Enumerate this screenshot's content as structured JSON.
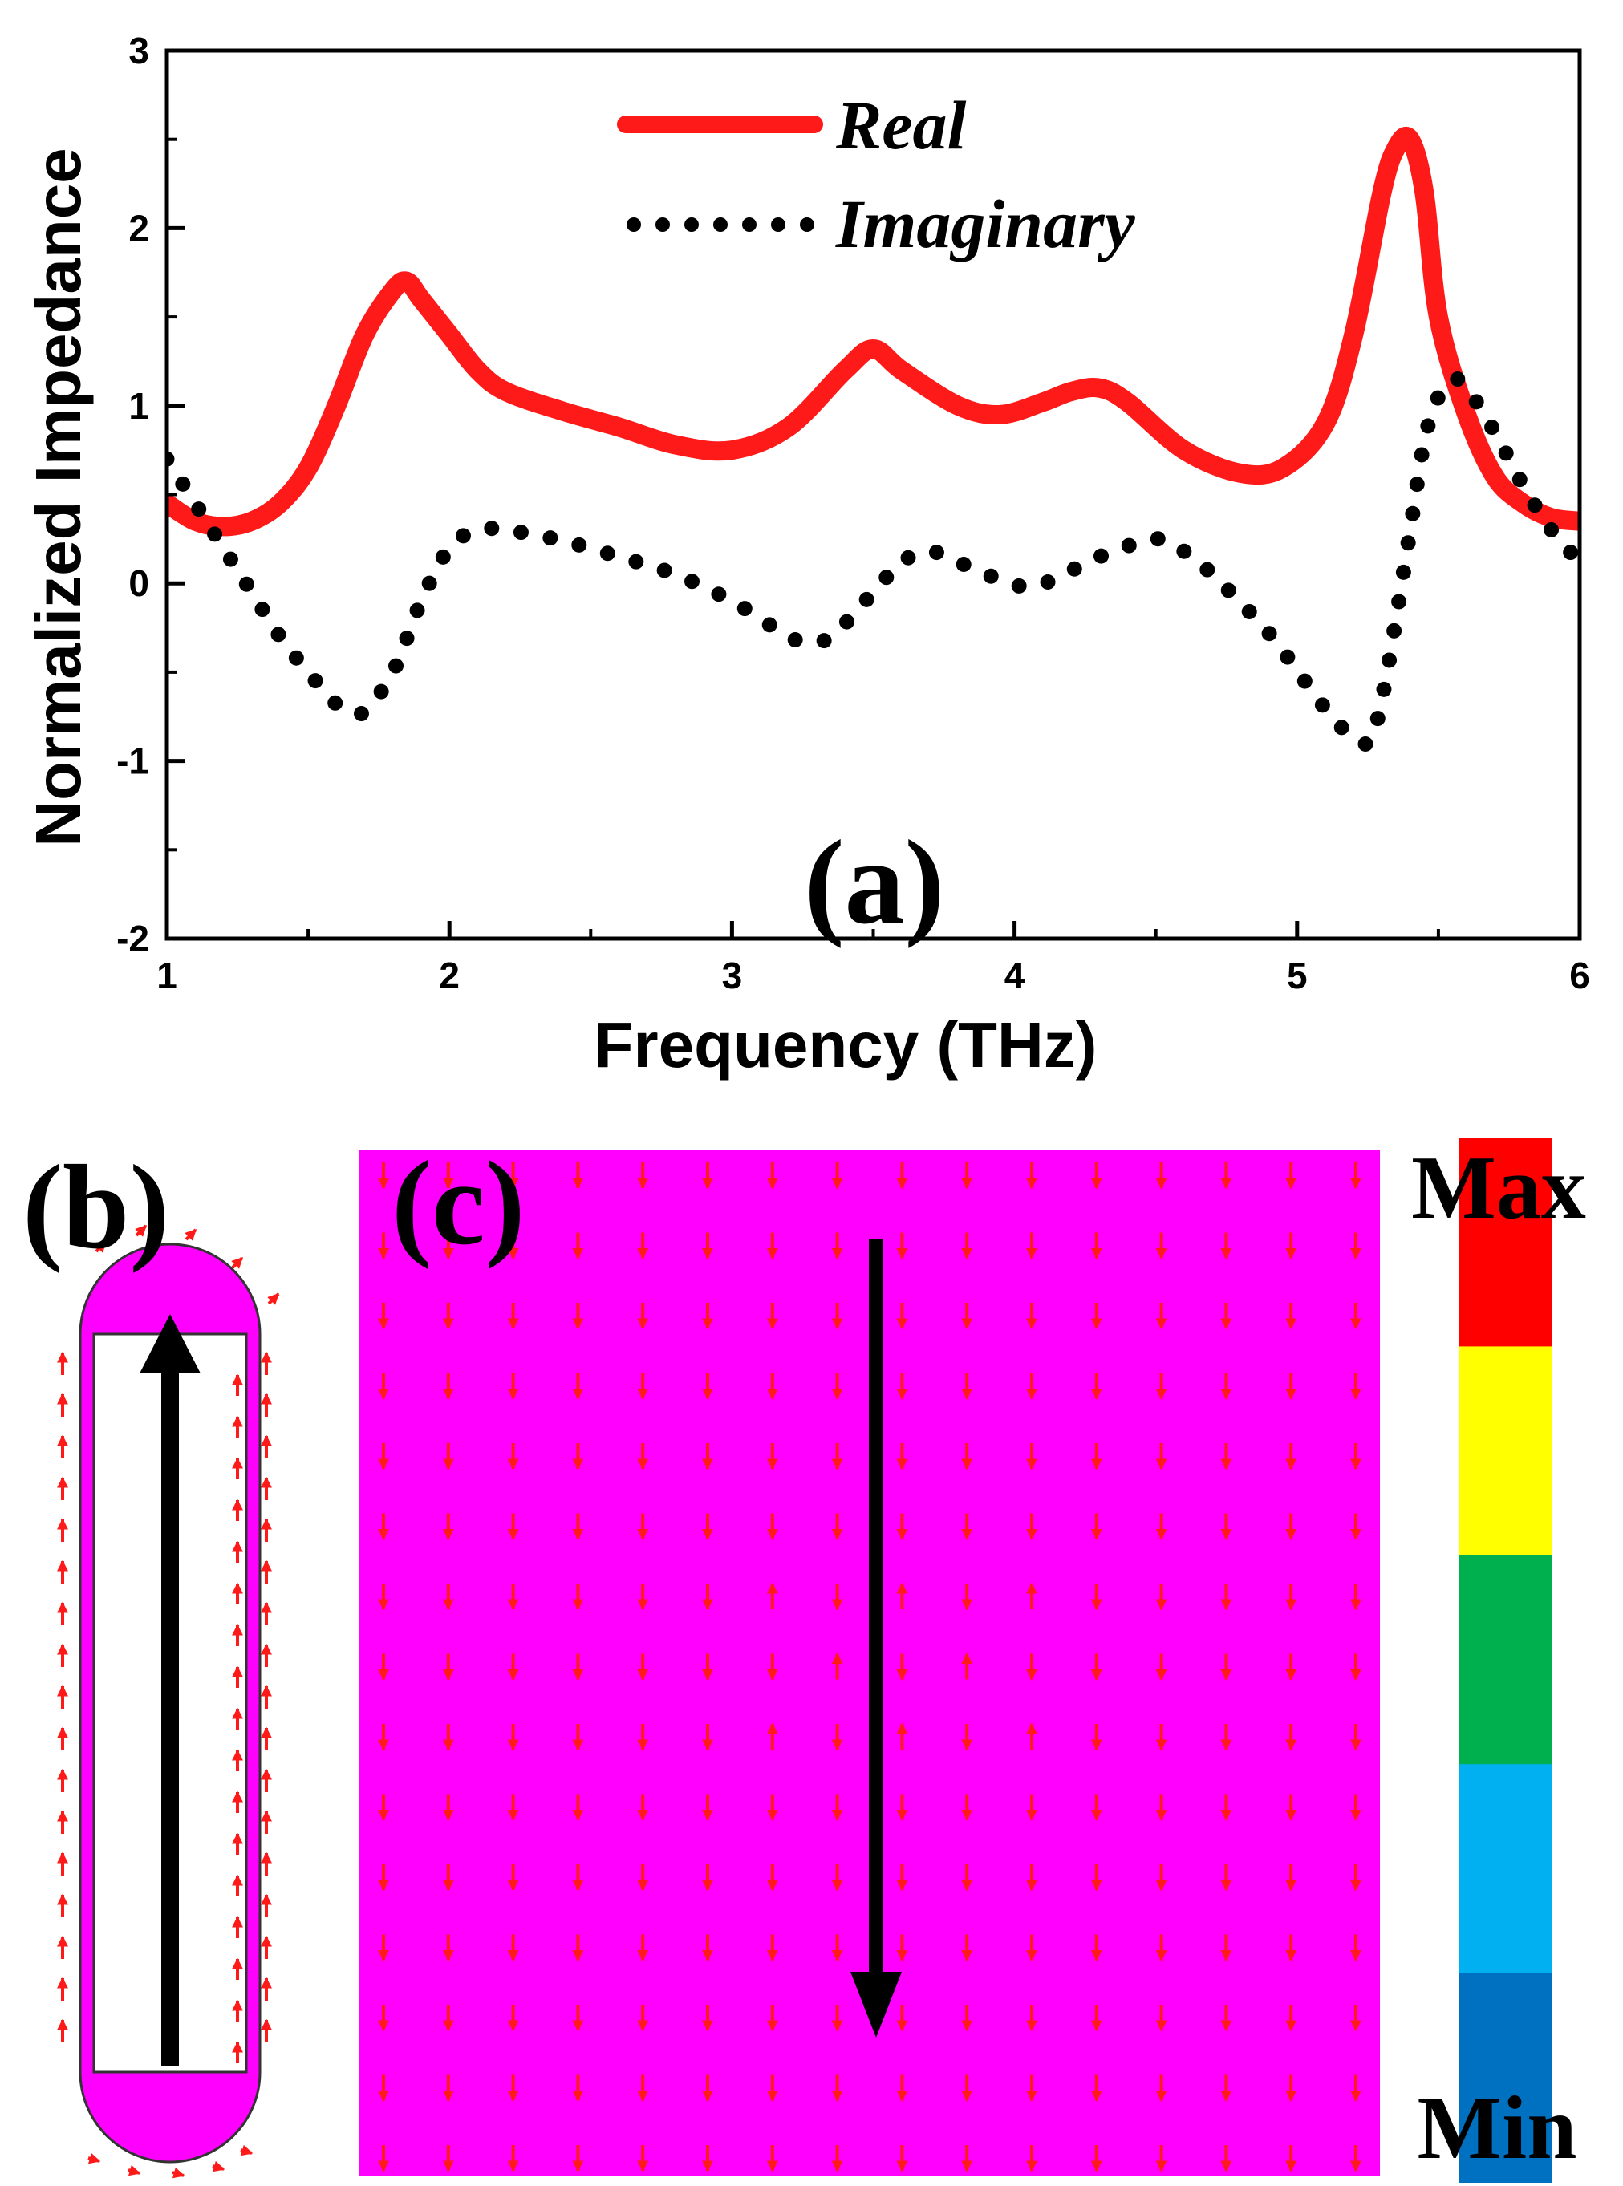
{
  "chart_data": {
    "type": "line",
    "xlabel": "Frequency (THz)",
    "ylabel": "Normalized Impedance",
    "xlim": [
      1,
      6
    ],
    "ylim": [
      -2,
      3
    ],
    "xticks": [
      "1",
      "2",
      "3",
      "4",
      "5",
      "6"
    ],
    "yticks": [
      "-2",
      "-1",
      "0",
      "1",
      "2",
      "3"
    ],
    "legend_position": "top-center",
    "panel_label": "(a)",
    "series": [
      {
        "name": "Real",
        "style": "solid",
        "color": "#ff1a1a",
        "x": [
          1.0,
          1.1,
          1.2,
          1.3,
          1.4,
          1.5,
          1.6,
          1.7,
          1.8,
          1.85,
          1.9,
          2.0,
          2.1,
          2.2,
          2.4,
          2.6,
          2.8,
          3.0,
          3.2,
          3.4,
          3.5,
          3.6,
          3.8,
          3.95,
          4.1,
          4.2,
          4.3,
          4.4,
          4.6,
          4.8,
          4.95,
          5.1,
          5.2,
          5.3,
          5.35,
          5.4,
          5.45,
          5.5,
          5.6,
          5.7,
          5.8,
          5.9,
          6.0
        ],
        "y": [
          0.45,
          0.35,
          0.32,
          0.35,
          0.45,
          0.65,
          1.0,
          1.4,
          1.65,
          1.7,
          1.6,
          1.4,
          1.2,
          1.08,
          0.97,
          0.88,
          0.78,
          0.75,
          0.88,
          1.2,
          1.32,
          1.2,
          1.0,
          0.95,
          1.02,
          1.08,
          1.1,
          1.02,
          0.75,
          0.62,
          0.65,
          0.9,
          1.4,
          2.2,
          2.45,
          2.5,
          2.2,
          1.5,
          0.95,
          0.6,
          0.45,
          0.37,
          0.35
        ]
      },
      {
        "name": "Imaginary",
        "style": "dotted",
        "color": "#000000",
        "x": [
          1.0,
          1.1,
          1.2,
          1.3,
          1.4,
          1.5,
          1.6,
          1.65,
          1.7,
          1.8,
          1.9,
          2.0,
          2.1,
          2.2,
          2.4,
          2.6,
          2.8,
          3.0,
          3.15,
          3.25,
          3.35,
          3.5,
          3.6,
          3.7,
          3.8,
          3.95,
          4.05,
          4.15,
          4.3,
          4.5,
          4.6,
          4.7,
          4.9,
          5.05,
          5.15,
          5.25,
          5.3,
          5.35,
          5.4,
          5.45,
          5.5,
          5.55,
          5.6,
          5.7,
          5.8,
          5.9,
          6.0
        ],
        "y": [
          0.7,
          0.45,
          0.2,
          -0.05,
          -0.3,
          -0.5,
          -0.68,
          -0.72,
          -0.72,
          -0.5,
          -0.1,
          0.2,
          0.3,
          0.3,
          0.24,
          0.15,
          0.05,
          -0.1,
          -0.25,
          -0.33,
          -0.3,
          -0.05,
          0.12,
          0.18,
          0.12,
          0.02,
          -0.02,
          0.03,
          0.15,
          0.25,
          0.18,
          0.05,
          -0.28,
          -0.6,
          -0.8,
          -0.9,
          -0.65,
          -0.2,
          0.3,
          0.8,
          1.05,
          1.15,
          1.1,
          0.85,
          0.55,
          0.3,
          0.12
        ]
      }
    ]
  },
  "panel_b": {
    "label": "(b)"
  },
  "panel_c": {
    "label": "(c)"
  },
  "colorbar": {
    "max_label": "Max",
    "min_label": "Min",
    "colors": [
      "#ff0000",
      "#ffff00",
      "#00b04f",
      "#00b0f0",
      "#0070c0"
    ]
  }
}
